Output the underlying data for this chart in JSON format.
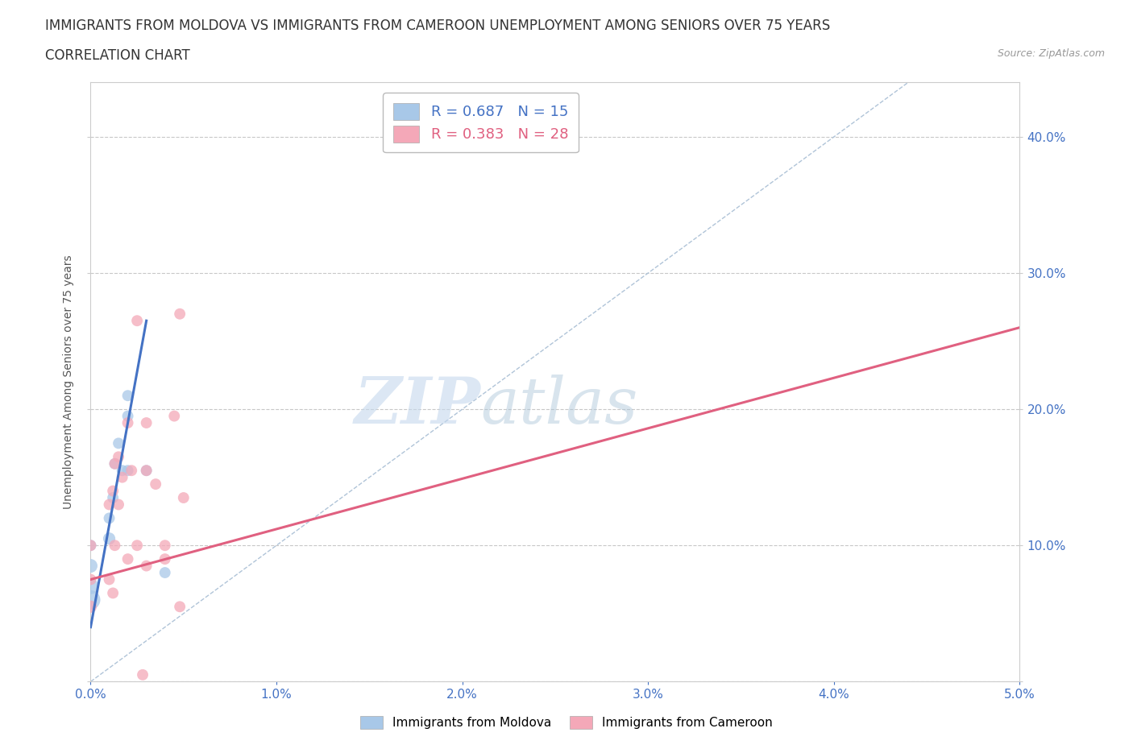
{
  "title_line1": "IMMIGRANTS FROM MOLDOVA VS IMMIGRANTS FROM CAMEROON UNEMPLOYMENT AMONG SENIORS OVER 75 YEARS",
  "title_line2": "CORRELATION CHART",
  "source_text": "Source: ZipAtlas.com",
  "ylabel": "Unemployment Among Seniors over 75 years",
  "xlim": [
    0.0,
    0.05
  ],
  "ylim": [
    0.0,
    0.44
  ],
  "xticks": [
    0.0,
    0.01,
    0.02,
    0.03,
    0.04,
    0.05
  ],
  "xticklabels": [
    "0.0%",
    "1.0%",
    "2.0%",
    "3.0%",
    "4.0%",
    "5.0%"
  ],
  "yticks": [
    0.0,
    0.1,
    0.2,
    0.3,
    0.4
  ],
  "yticklabels": [
    "",
    "10.0%",
    "20.0%",
    "30.0%",
    "40.0%"
  ],
  "grid_color": "#c8c8c8",
  "background_color": "#ffffff",
  "moldova_color": "#a8c8e8",
  "cameroon_color": "#f4a8b8",
  "moldova_line_color": "#4472c4",
  "cameroon_line_color": "#e06080",
  "ref_line_color": "#b0c4d8",
  "legend_R_moldova": "R = 0.687",
  "legend_N_moldova": "N = 15",
  "legend_R_cameroon": "R = 0.383",
  "legend_N_cameroon": "N = 28",
  "moldova_x": [
    0.0,
    0.0,
    0.0,
    0.0,
    0.001,
    0.001,
    0.0012,
    0.0013,
    0.0015,
    0.0017,
    0.002,
    0.002,
    0.002,
    0.003,
    0.004
  ],
  "moldova_y": [
    0.06,
    0.07,
    0.085,
    0.1,
    0.105,
    0.12,
    0.135,
    0.16,
    0.175,
    0.155,
    0.155,
    0.195,
    0.21,
    0.155,
    0.08
  ],
  "moldova_sizes": [
    300,
    200,
    150,
    100,
    120,
    100,
    100,
    100,
    100,
    100,
    100,
    100,
    100,
    100,
    100
  ],
  "cameroon_x": [
    0.0,
    0.0,
    0.0,
    0.001,
    0.001,
    0.0012,
    0.0012,
    0.0013,
    0.0013,
    0.0015,
    0.0015,
    0.0017,
    0.002,
    0.0022,
    0.0025,
    0.003,
    0.003,
    0.0035,
    0.004,
    0.004,
    0.0045,
    0.0048,
    0.005,
    0.0048,
    0.0025,
    0.002,
    0.0028,
    0.003
  ],
  "cameroon_y": [
    0.055,
    0.075,
    0.1,
    0.075,
    0.13,
    0.14,
    0.065,
    0.16,
    0.1,
    0.13,
    0.165,
    0.15,
    0.19,
    0.155,
    0.1,
    0.19,
    0.155,
    0.145,
    0.09,
    0.1,
    0.195,
    0.27,
    0.135,
    0.055,
    0.265,
    0.09,
    0.005,
    0.085
  ],
  "cameroon_sizes": [
    120,
    100,
    100,
    100,
    100,
    100,
    100,
    100,
    100,
    100,
    100,
    100,
    100,
    100,
    100,
    100,
    100,
    100,
    100,
    100,
    100,
    100,
    100,
    100,
    100,
    100,
    100,
    100
  ],
  "moldova_trend_x": [
    0.0,
    0.003
  ],
  "moldova_trend_y": [
    0.04,
    0.265
  ],
  "cameroon_trend_x": [
    0.0,
    0.05
  ],
  "cameroon_trend_y": [
    0.075,
    0.26
  ],
  "ref_line_x": [
    0.0,
    0.044
  ],
  "ref_line_y": [
    0.0,
    0.44
  ],
  "watermark_zip": "ZIP",
  "watermark_atlas": "atlas",
  "axis_tick_color": "#4472c4",
  "title_fontsize": 12,
  "axis_label_fontsize": 10,
  "tick_fontsize": 11
}
